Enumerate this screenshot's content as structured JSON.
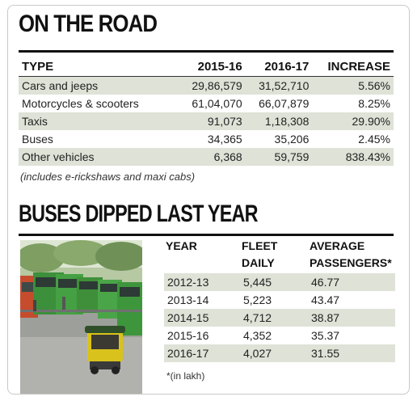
{
  "section1": {
    "title": "ON THE ROAD",
    "headers": [
      "TYPE",
      "2015-16",
      "2016-17",
      "INCREASE"
    ],
    "rows": [
      [
        "Cars and jeeps",
        "29,86,579",
        "31,52,710",
        "5.56%"
      ],
      [
        "Motorcycles & scooters",
        "61,04,070",
        "66,07,879",
        "8.25%"
      ],
      [
        "Taxis",
        "91,073",
        "1,18,308",
        "29.90%"
      ],
      [
        "Buses",
        "34,365",
        "35,206",
        "2.45%"
      ],
      [
        "Other vehicles",
        "6,368",
        "59,759",
        "838.43%"
      ]
    ],
    "note": "(includes e-rickshaws and maxi cabs)"
  },
  "section2": {
    "title": "BUSES DIPPED LAST YEAR",
    "headers": {
      "year": "YEAR",
      "fleet_1": "FLEET",
      "fleet_2": "DAILY",
      "avg_1": "AVERAGE",
      "avg_2": "PASSENGERS*"
    },
    "rows": [
      [
        "2012-13",
        "5,445",
        "46.77"
      ],
      [
        "2013-14",
        "5,223",
        "43.47"
      ],
      [
        "2014-15",
        "4,712",
        "38.87"
      ],
      [
        "2015-16",
        "4,352",
        "35.37"
      ],
      [
        "2016-17",
        "4,027",
        "31.55"
      ]
    ],
    "footnote": "*(in lakh)"
  },
  "colors": {
    "row_shade": "#dfe2d7",
    "bus_green": "#3f8f3a",
    "autorickshaw_yellow": "#d9c21c"
  },
  "photo": {
    "subject": "green city buses parked in a depot with an auto-rickshaw in the foreground"
  }
}
